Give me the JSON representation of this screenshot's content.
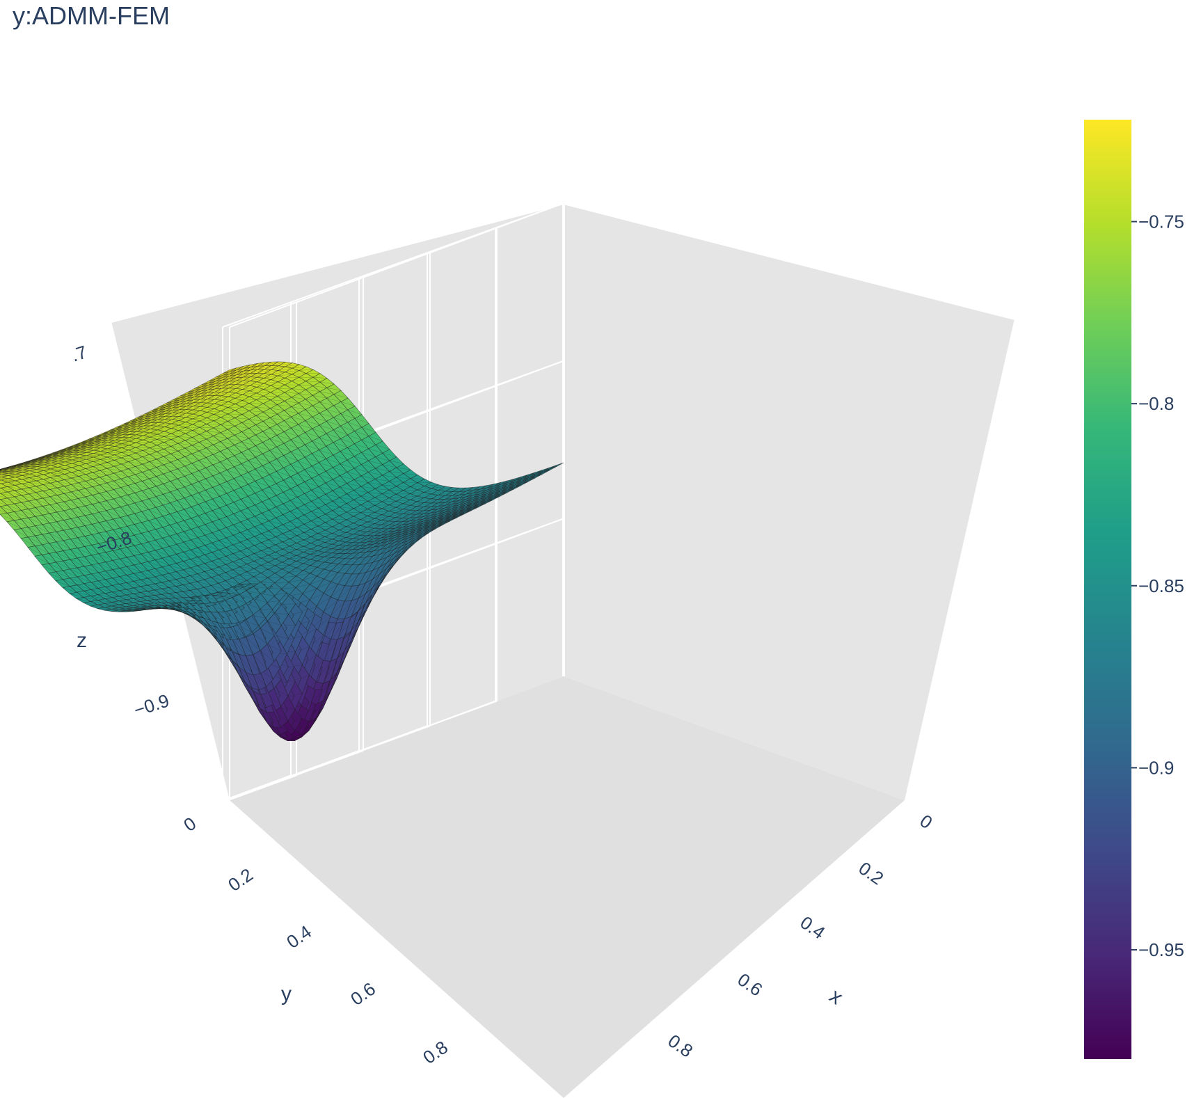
{
  "chart_data": {
    "type": "surface",
    "title": "y:ADMM-FEM",
    "xlabel": "x",
    "ylabel": "y",
    "zlabel": "z",
    "x_ticks": [
      "0",
      "0.2",
      "0.4",
      "0.6",
      "0.8"
    ],
    "y_ticks": [
      "0",
      "0.2",
      "0.4",
      "0.6",
      "0.8"
    ],
    "z_ticks": [
      ".7",
      "−0.8",
      "−0.9"
    ],
    "xlim": [
      0,
      1
    ],
    "ylim": [
      0,
      1
    ],
    "zlim": [
      -1.0,
      -0.7
    ],
    "colorscale": "Viridis",
    "colorbar": {
      "ticks": [
        "−0.75",
        "−0.8",
        "−0.85",
        "−0.9",
        "−0.95"
      ],
      "tick_values": [
        -0.75,
        -0.8,
        -0.85,
        -0.9,
        -0.95
      ],
      "range": [
        -0.98,
        -0.722
      ]
    },
    "surface_samples": [
      {
        "x": 0,
        "y": 0,
        "z": -0.74
      },
      {
        "x": 1,
        "y": 0,
        "z": -0.72
      },
      {
        "x": 0,
        "y": 1,
        "z": -0.87
      },
      {
        "x": 1,
        "y": 1,
        "z": -0.86
      },
      {
        "x": 0.35,
        "y": 0.85,
        "z": -0.98
      }
    ],
    "grid": true
  }
}
